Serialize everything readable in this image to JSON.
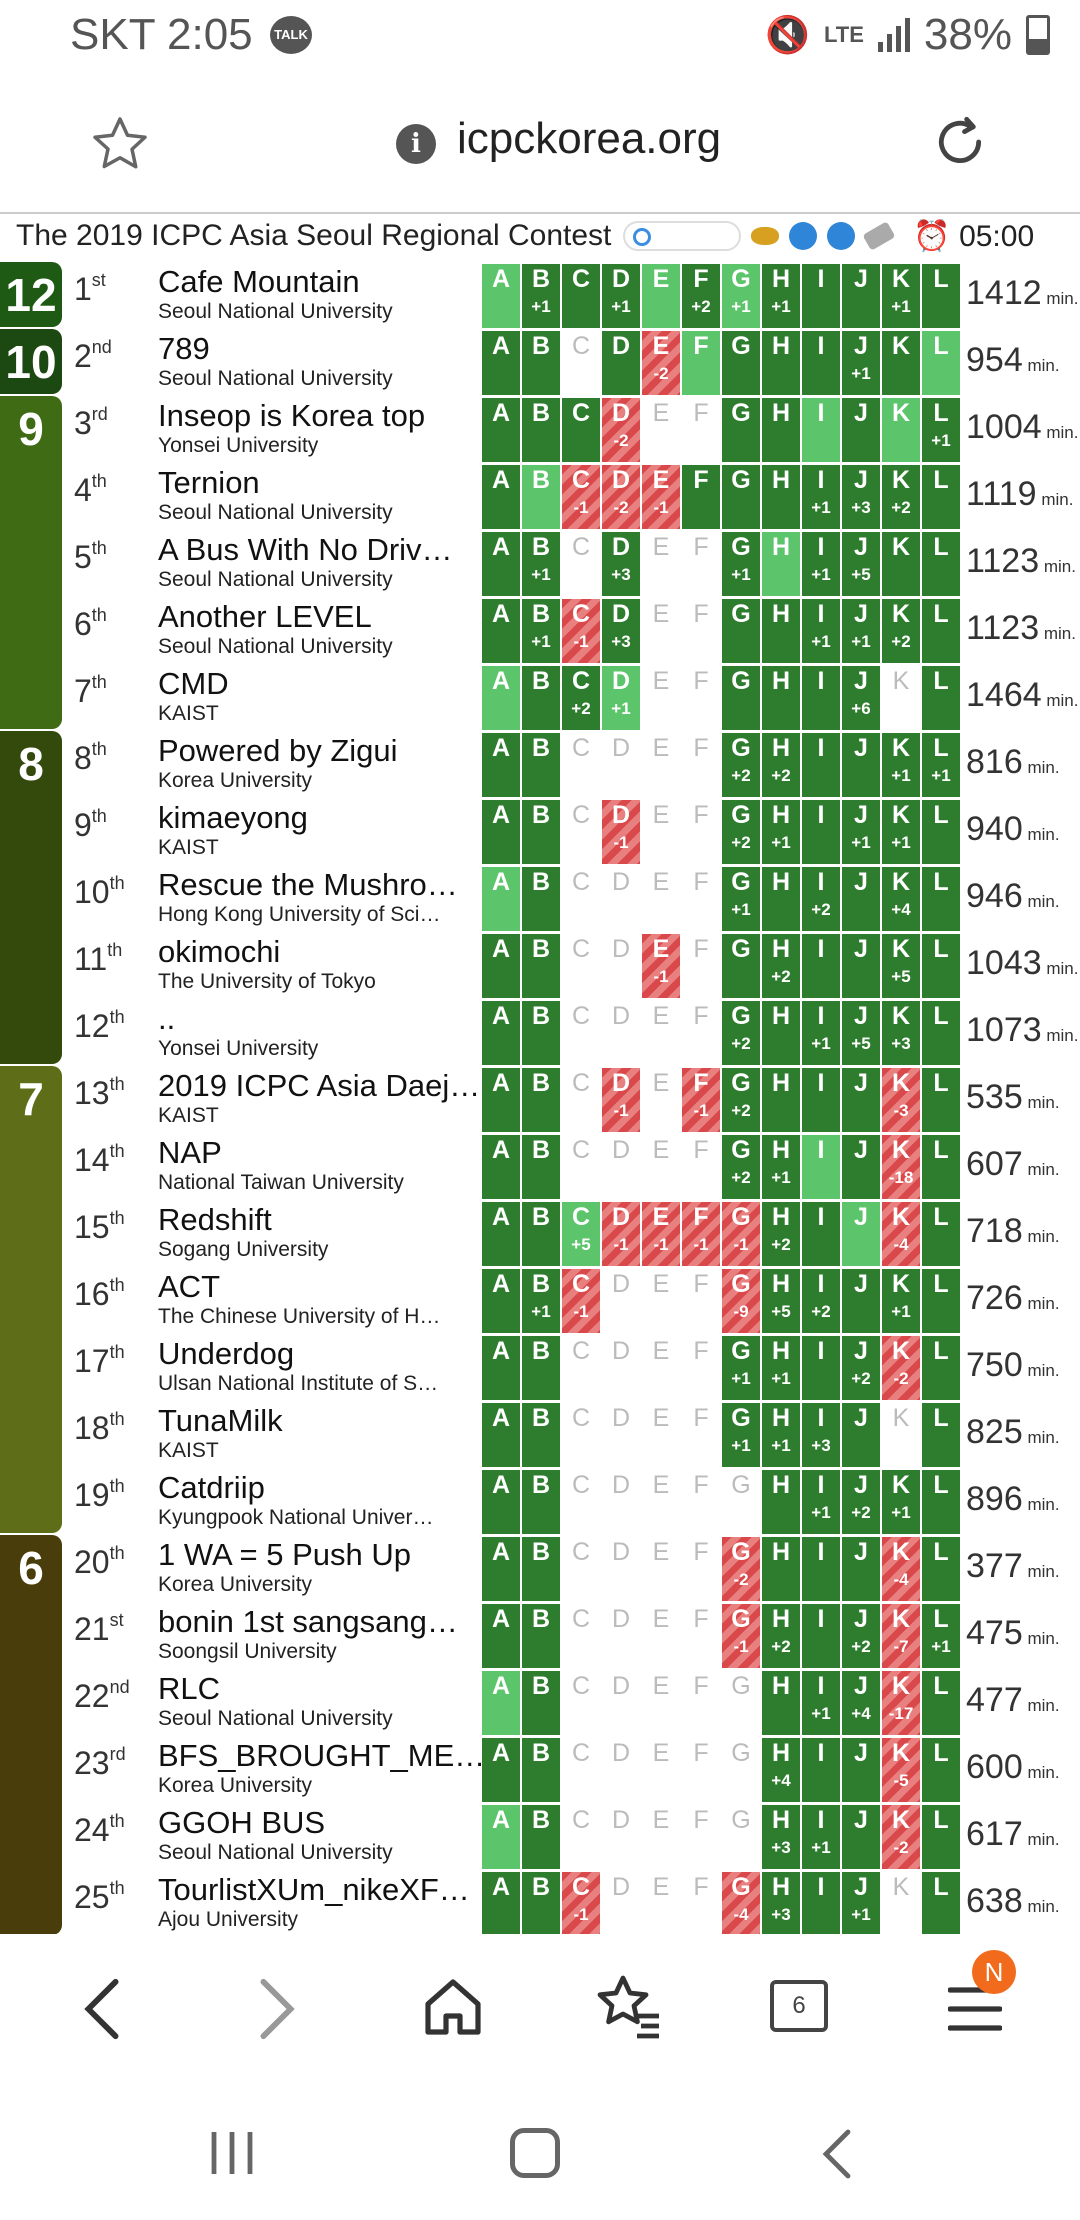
{
  "status": {
    "carrier_time": "SKT 2:05",
    "talk": "TALK",
    "lte": "LTE",
    "battery": "38%"
  },
  "url": "icpckorea.org",
  "title": "The 2019 ICPC Asia Seoul Regional Contest",
  "time_left": "05:00",
  "min_unit": "min.",
  "problems": [
    "A",
    "B",
    "C",
    "D",
    "E",
    "F",
    "G",
    "H",
    "I",
    "J",
    "K",
    "L"
  ],
  "groups": [
    {
      "label": "12"
    },
    {
      "label": "10"
    },
    {
      "label": "9"
    },
    {
      "label": "8"
    },
    {
      "label": "7"
    },
    {
      "label": "6"
    }
  ],
  "rows": [
    {
      "rank": "1",
      "suf": "st",
      "team": "Cafe Mountain",
      "univ": "Seoul National University",
      "score": "1412",
      "cells": [
        "F",
        "A+1",
        "A",
        "A+1",
        "F",
        "A+2",
        "F+1",
        "A+1",
        "A",
        "A",
        "A+1",
        "A"
      ]
    },
    {
      "rank": "2",
      "suf": "nd",
      "team": "789",
      "univ": "Seoul National University",
      "score": "954",
      "cells": [
        "A",
        "A",
        "N",
        "A",
        "W-2",
        "F",
        "A",
        "A",
        "A",
        "A+1",
        "A",
        "F"
      ]
    },
    {
      "rank": "3",
      "suf": "rd",
      "team": "Inseop is Korea top",
      "univ": "Yonsei University",
      "score": "1004",
      "cells": [
        "A",
        "A",
        "A",
        "W-2",
        "N",
        "N",
        "A",
        "A",
        "F",
        "A",
        "F",
        "A+1"
      ]
    },
    {
      "rank": "4",
      "suf": "th",
      "team": "Ternion",
      "univ": "Seoul National University",
      "score": "1119",
      "cells": [
        "A",
        "F",
        "W-1",
        "W-2",
        "W-1",
        "A",
        "A",
        "A",
        "A+1",
        "A+3",
        "A+2",
        "A"
      ]
    },
    {
      "rank": "5",
      "suf": "th",
      "team": "A Bus With No Driv…",
      "univ": "Seoul National University",
      "score": "1123",
      "cells": [
        "A",
        "A+1",
        "N",
        "A+3",
        "N",
        "N",
        "A+1",
        "F",
        "A+1",
        "A+5",
        "A",
        "A"
      ]
    },
    {
      "rank": "6",
      "suf": "th",
      "team": "Another LEVEL",
      "univ": "Seoul National University",
      "score": "1123",
      "cells": [
        "A",
        "A+1",
        "W-1",
        "A+3",
        "N",
        "N",
        "A",
        "A",
        "A+1",
        "A+1",
        "A+2",
        "A"
      ]
    },
    {
      "rank": "7",
      "suf": "th",
      "team": "CMD",
      "univ": "KAIST",
      "score": "1464",
      "cells": [
        "F",
        "A",
        "A+2",
        "F+1",
        "N",
        "N",
        "A",
        "A",
        "A",
        "A+6",
        "N",
        "A"
      ]
    },
    {
      "rank": "8",
      "suf": "th",
      "team": "Powered by Zigui",
      "univ": "Korea University",
      "score": "816",
      "cells": [
        "A",
        "A",
        "N",
        "N",
        "N",
        "N",
        "A+2",
        "A+2",
        "A",
        "A",
        "A+1",
        "A+1"
      ]
    },
    {
      "rank": "9",
      "suf": "th",
      "team": "kimaeyong",
      "univ": "KAIST",
      "score": "940",
      "cells": [
        "A",
        "A",
        "N",
        "W-1",
        "N",
        "N",
        "A+2",
        "A+1",
        "A",
        "A+1",
        "A+1",
        "A"
      ]
    },
    {
      "rank": "10",
      "suf": "th",
      "team": "Rescue the Mushro…",
      "univ": "Hong Kong University of Sci…",
      "score": "946",
      "cells": [
        "F",
        "A",
        "N",
        "N",
        "N",
        "N",
        "A+1",
        "A",
        "A+2",
        "A",
        "A+4",
        "A"
      ]
    },
    {
      "rank": "11",
      "suf": "th",
      "team": "okimochi",
      "univ": "The University of Tokyo",
      "score": "1043",
      "cells": [
        "A",
        "A",
        "N",
        "N",
        "W-1",
        "N",
        "A",
        "A+2",
        "A",
        "A",
        "A+5",
        "A"
      ]
    },
    {
      "rank": "12",
      "suf": "th",
      "team": "..",
      "univ": "Yonsei University",
      "score": "1073",
      "cells": [
        "A",
        "A",
        "N",
        "N",
        "N",
        "N",
        "A+2",
        "A",
        "A+1",
        "A+5",
        "A+3",
        "A"
      ]
    },
    {
      "rank": "13",
      "suf": "th",
      "team": "2019 ICPC Asia Daej…",
      "univ": "KAIST",
      "score": "535",
      "cells": [
        "A",
        "A",
        "N",
        "W-1",
        "N",
        "W-1",
        "A+2",
        "A",
        "A",
        "A",
        "W-3",
        "A"
      ]
    },
    {
      "rank": "14",
      "suf": "th",
      "team": "NAP",
      "univ": "National Taiwan University",
      "score": "607",
      "cells": [
        "A",
        "A",
        "N",
        "N",
        "N",
        "N",
        "A+2",
        "A+1",
        "F",
        "A",
        "W-18",
        "A"
      ]
    },
    {
      "rank": "15",
      "suf": "th",
      "team": "Redshift",
      "univ": "Sogang University",
      "score": "718",
      "cells": [
        "A",
        "A",
        "F+5",
        "W-1",
        "W-1",
        "W-1",
        "W-1",
        "A+2",
        "A",
        "F",
        "W-4",
        "A"
      ]
    },
    {
      "rank": "16",
      "suf": "th",
      "team": "ACT",
      "univ": "The Chinese University of H…",
      "score": "726",
      "cells": [
        "A",
        "A+1",
        "W-1",
        "N",
        "N",
        "N",
        "W-9",
        "A+5",
        "A+2",
        "A",
        "A+1",
        "A"
      ]
    },
    {
      "rank": "17",
      "suf": "th",
      "team": "Underdog",
      "univ": "Ulsan National Institute of S…",
      "score": "750",
      "cells": [
        "A",
        "A",
        "N",
        "N",
        "N",
        "N",
        "A+1",
        "A+1",
        "A",
        "A+2",
        "W-2",
        "A"
      ]
    },
    {
      "rank": "18",
      "suf": "th",
      "team": "TunaMilk",
      "univ": "KAIST",
      "score": "825",
      "cells": [
        "A",
        "A",
        "N",
        "N",
        "N",
        "N",
        "A+1",
        "A+1",
        "A+3",
        "A",
        "N",
        "A"
      ]
    },
    {
      "rank": "19",
      "suf": "th",
      "team": "Catdriip",
      "univ": "Kyungpook National Univer…",
      "score": "896",
      "cells": [
        "A",
        "A",
        "N",
        "N",
        "N",
        "N",
        "N",
        "A",
        "A+1",
        "A+2",
        "A+1",
        "A"
      ]
    },
    {
      "rank": "20",
      "suf": "th",
      "team": "1 WA = 5 Push Up",
      "univ": "Korea University",
      "score": "377",
      "cells": [
        "A",
        "A",
        "N",
        "N",
        "N",
        "N",
        "W-2",
        "A",
        "A",
        "A",
        "W-4",
        "A"
      ]
    },
    {
      "rank": "21",
      "suf": "st",
      "team": "bonin 1st sangsang…",
      "univ": "Soongsil University",
      "score": "475",
      "cells": [
        "A",
        "A",
        "N",
        "N",
        "N",
        "N",
        "W-1",
        "A+2",
        "A",
        "A+2",
        "W-7",
        "A+1"
      ]
    },
    {
      "rank": "22",
      "suf": "nd",
      "team": "RLC",
      "univ": "Seoul National University",
      "score": "477",
      "cells": [
        "F",
        "A",
        "N",
        "N",
        "N",
        "N",
        "N",
        "A",
        "A+1",
        "A+4",
        "W-17",
        "A"
      ]
    },
    {
      "rank": "23",
      "suf": "rd",
      "team": "BFS_BROUGHT_ME…",
      "univ": "Korea University",
      "score": "600",
      "cells": [
        "A",
        "A",
        "N",
        "N",
        "N",
        "N",
        "N",
        "A+4",
        "A",
        "A",
        "W-5",
        "A"
      ]
    },
    {
      "rank": "24",
      "suf": "th",
      "team": "GGOH BUS",
      "univ": "Seoul National University",
      "score": "617",
      "cells": [
        "F",
        "A",
        "N",
        "N",
        "N",
        "N",
        "N",
        "A+3",
        "A+1",
        "A",
        "W-2",
        "A"
      ]
    },
    {
      "rank": "25",
      "suf": "th",
      "team": "TourlistXUm_nikeXF…",
      "univ": "Ajou University",
      "score": "638",
      "cells": [
        "A",
        "A",
        "W-1",
        "N",
        "N",
        "N",
        "W-4",
        "A+3",
        "A",
        "A+1",
        "N",
        "A"
      ]
    }
  ],
  "nav": {
    "tabs": "6",
    "badge": "N"
  },
  "colors": {
    "accepted": "#2e7d2e",
    "first_solve": "#5cc46a",
    "wrong": "#d9484b",
    "group_dark": "#1e4d12",
    "group_olive": "#5c6e16",
    "group_brown": "#4a3d0c"
  }
}
